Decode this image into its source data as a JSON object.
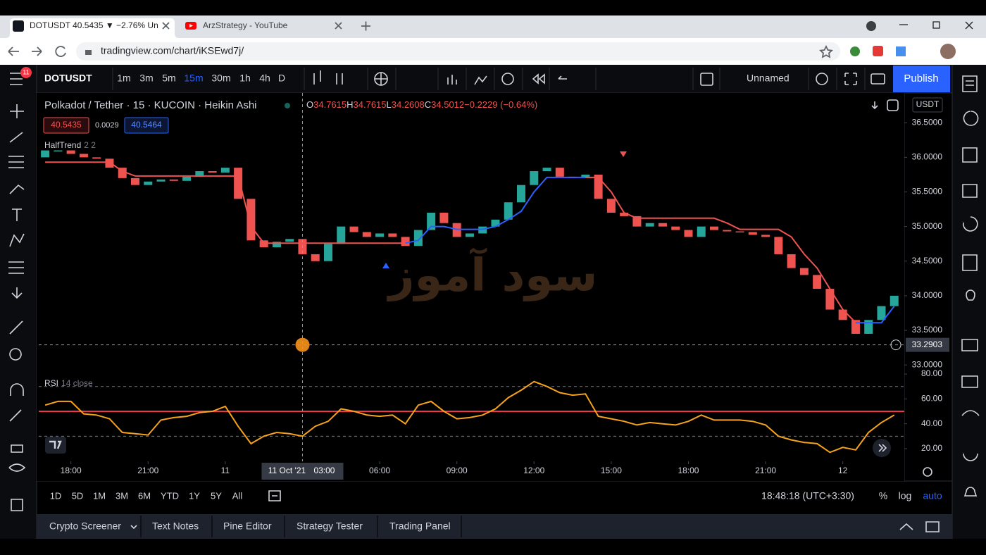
{
  "browser": {
    "tabs": [
      "DOTUSDT 40.5435 ▼ −2.76% Un",
      "ArzStrategy - YouTube"
    ],
    "url": "tradingview.com/chart/iKSEwd7j/"
  },
  "toolbar": {
    "badge": "11",
    "symbol": "DOTUSDT",
    "intervals": [
      "1m",
      "3m",
      "5m",
      "15m",
      "30m",
      "1h",
      "4h",
      "D"
    ],
    "active_interval": 3,
    "layout": "Unnamed",
    "publish": "Publish"
  },
  "legend": {
    "title": "Polkadot / Tether · 15 · KUCOIN · Heikin Ashi",
    "ohlc": [
      "O",
      "34.7615",
      "H",
      "34.7615",
      "L",
      "34.2608",
      "C",
      "34.5012",
      "−0.2229 (−0.64%)"
    ],
    "sell": "40.5435",
    "spread": "0.0029",
    "buy": "40.5464",
    "indicator": "HalfTrend",
    "indicator_params": "2 2",
    "rsi": "RSI",
    "rsi_params": "14 close",
    "currency": "USDT"
  },
  "watermark": "سود آموز",
  "crosshair": {
    "x": 3,
    "x_date": "11 Oct '21",
    "x_time": "03:00",
    "y": 33.2903
  },
  "chart_data": [
    {
      "type": "candlestick",
      "colors": {
        "up": "#26a69a",
        "down": "#ef5350",
        "trend_up": "#2962ff",
        "trend_down": "#ef5350"
      },
      "xlim": [
        -7.25,
        26.39
      ],
      "ylim": [
        32.91,
        36.93
      ],
      "yticks": [
        {
          "value": 33.0,
          "label": "33.0000"
        },
        {
          "value": 33.5,
          "label": "33.5000"
        },
        {
          "value": 34.0,
          "label": "34.0000"
        },
        {
          "value": 34.5,
          "label": "34.5000"
        },
        {
          "value": 35.0,
          "label": "35.0000"
        },
        {
          "value": 35.5,
          "label": "35.5000"
        },
        {
          "value": 36.0,
          "label": "36.0000"
        },
        {
          "value": 36.5,
          "label": "36.5000"
        }
      ],
      "x": [
        -7,
        -6.5,
        -6,
        -5.5,
        -5,
        -4.5,
        -4,
        -3.5,
        -3,
        -2.5,
        -2,
        -1.5,
        -1,
        -0.5,
        0,
        0.5,
        1,
        1.5,
        2,
        2.5,
        3,
        3.5,
        4,
        4.5,
        5,
        5.5,
        6,
        6.5,
        7,
        7.5,
        8,
        8.5,
        9,
        9.5,
        10,
        10.5,
        11,
        11.5,
        12,
        12.5,
        13,
        13.5,
        14,
        14.5,
        15,
        15.5,
        16,
        16.5,
        17,
        17.5,
        18,
        18.5,
        19,
        19.5,
        20,
        20.5,
        21,
        21.5,
        22,
        22.5,
        23,
        23.5,
        24,
        24.5,
        25,
        25.5,
        26
      ],
      "open": [
        36.0,
        36.1,
        36.1,
        36.05,
        36.0,
        35.98,
        35.85,
        35.7,
        35.6,
        35.65,
        35.68,
        35.66,
        35.72,
        35.8,
        35.78,
        35.85,
        35.4,
        34.8,
        34.7,
        34.78,
        34.82,
        34.6,
        34.5,
        34.75,
        35.0,
        34.92,
        34.85,
        34.9,
        34.85,
        34.72,
        34.95,
        35.2,
        35.05,
        34.85,
        34.9,
        35.0,
        35.1,
        35.35,
        35.6,
        35.8,
        35.85,
        35.72,
        35.7,
        35.75,
        35.4,
        35.2,
        35.15,
        35.0,
        35.05,
        35.0,
        34.95,
        34.85,
        35.0,
        34.95,
        34.93,
        34.92,
        34.88,
        34.85,
        34.6,
        34.4,
        34.3,
        34.1,
        33.8,
        33.65,
        33.45,
        33.65,
        33.85
      ],
      "close": [
        36.1,
        36.1,
        36.05,
        36.0,
        35.98,
        35.85,
        35.7,
        35.6,
        35.65,
        35.68,
        35.66,
        35.72,
        35.8,
        35.78,
        35.85,
        35.4,
        34.8,
        34.7,
        34.78,
        34.82,
        34.6,
        34.5,
        34.75,
        35.0,
        34.92,
        34.85,
        34.9,
        34.85,
        34.72,
        34.95,
        35.2,
        35.05,
        34.85,
        34.9,
        35.0,
        35.1,
        35.35,
        35.6,
        35.8,
        35.85,
        35.72,
        35.7,
        35.75,
        35.4,
        35.2,
        35.15,
        35.0,
        35.05,
        35.0,
        34.95,
        34.85,
        35.0,
        34.95,
        34.93,
        34.92,
        34.88,
        34.85,
        34.6,
        34.4,
        34.3,
        34.1,
        33.8,
        33.65,
        33.45,
        33.65,
        33.85,
        34.0
      ],
      "halftrend_down": [
        35.93,
        35.93,
        35.93,
        35.93,
        35.93,
        35.93,
        35.8,
        35.73,
        35.73,
        35.73,
        35.73,
        35.73,
        35.73,
        35.73,
        35.73,
        35.73,
        35.0,
        34.76,
        34.76,
        34.76,
        34.76,
        34.76,
        34.76,
        34.76,
        34.76,
        34.76,
        34.76,
        34.76,
        34.76,
        null,
        null,
        null,
        null,
        null,
        null,
        null,
        null,
        null,
        null,
        null,
        null,
        null,
        35.71,
        35.71,
        35.5,
        35.2,
        35.12,
        35.12,
        35.12,
        35.12,
        35.12,
        35.12,
        35.12,
        35.05,
        34.96,
        34.96,
        34.96,
        34.96,
        34.85,
        34.6,
        34.4,
        34.1,
        33.8,
        33.61,
        null,
        null,
        null
      ],
      "halftrend_up": [
        null,
        null,
        null,
        null,
        null,
        null,
        null,
        null,
        null,
        null,
        null,
        null,
        null,
        null,
        null,
        null,
        null,
        null,
        null,
        null,
        null,
        null,
        null,
        null,
        null,
        null,
        null,
        null,
        34.76,
        34.8,
        35.0,
        35.0,
        34.96,
        34.96,
        34.96,
        35.0,
        35.1,
        35.22,
        35.5,
        35.71,
        35.71,
        35.71,
        35.71,
        null,
        null,
        null,
        null,
        null,
        null,
        null,
        null,
        null,
        null,
        null,
        null,
        null,
        null,
        null,
        null,
        null,
        null,
        null,
        null,
        33.61,
        33.61,
        33.61,
        33.85
      ]
    },
    {
      "type": "line",
      "color": "#f7a21b",
      "signal": 50,
      "signal_color": "#f23645",
      "levels": [
        70,
        30
      ],
      "xlim": [
        -7.25,
        26.39
      ],
      "ylim": [
        9.8,
        82.3
      ],
      "yticks": [
        {
          "value": 20,
          "label": "20.00"
        },
        {
          "value": 40,
          "label": "40.00"
        },
        {
          "value": 60,
          "label": "60.00"
        },
        {
          "value": 80,
          "label": "80.00"
        }
      ],
      "xticks": [
        {
          "value": -6,
          "label": "18:00"
        },
        {
          "value": -3,
          "label": "21:00"
        },
        {
          "value": 0,
          "label": "11"
        },
        {
          "value": 6,
          "label": "06:00"
        },
        {
          "value": 9,
          "label": "09:00"
        },
        {
          "value": 12,
          "label": "12:00"
        },
        {
          "value": 15,
          "label": "15:00"
        },
        {
          "value": 18,
          "label": "18:00"
        },
        {
          "value": 21,
          "label": "21:00"
        },
        {
          "value": 24,
          "label": "12"
        }
      ],
      "x": [
        -7,
        -6.5,
        -6,
        -5.5,
        -5,
        -4.5,
        -4,
        -3.5,
        -3,
        -2.5,
        -2,
        -1.5,
        -1,
        -0.5,
        0,
        0.5,
        1,
        1.5,
        2,
        2.5,
        3,
        3.5,
        4,
        4.5,
        5,
        5.5,
        6,
        6.5,
        7,
        7.5,
        8,
        8.5,
        9,
        9.5,
        10,
        10.5,
        11,
        11.5,
        12,
        12.5,
        13,
        13.5,
        14,
        14.5,
        15,
        15.5,
        16,
        16.5,
        17,
        17.5,
        18,
        18.5,
        19,
        19.5,
        20,
        20.5,
        21,
        21.5,
        22,
        22.5,
        23,
        23.5,
        24,
        24.5,
        25,
        25.5,
        26
      ],
      "values": [
        55,
        58,
        58,
        48,
        47,
        44,
        33,
        32,
        31,
        43,
        45,
        46,
        49,
        50,
        54,
        38,
        24,
        30,
        33,
        32,
        30,
        38,
        42,
        52,
        50,
        47,
        46,
        47,
        40,
        55,
        58,
        50,
        44,
        45,
        47,
        52,
        61,
        67,
        74,
        70,
        65,
        63,
        64,
        46,
        44,
        42,
        39,
        41,
        40,
        39,
        42,
        47,
        43,
        43,
        43,
        42,
        39,
        30,
        27,
        25,
        24,
        17,
        21,
        19,
        33,
        41,
        47
      ]
    }
  ],
  "bottom_bar": {
    "ranges": [
      "1D",
      "5D",
      "1M",
      "3M",
      "6M",
      "YTD",
      "1Y",
      "5Y",
      "All"
    ],
    "clock": "18:48:18 (UTC+3:30)",
    "scale": [
      "%",
      "log",
      "auto"
    ]
  },
  "panel_tabs": [
    "Crypto Screener",
    "Text Notes",
    "Pine Editor",
    "Strategy Tester",
    "Trading Panel"
  ]
}
